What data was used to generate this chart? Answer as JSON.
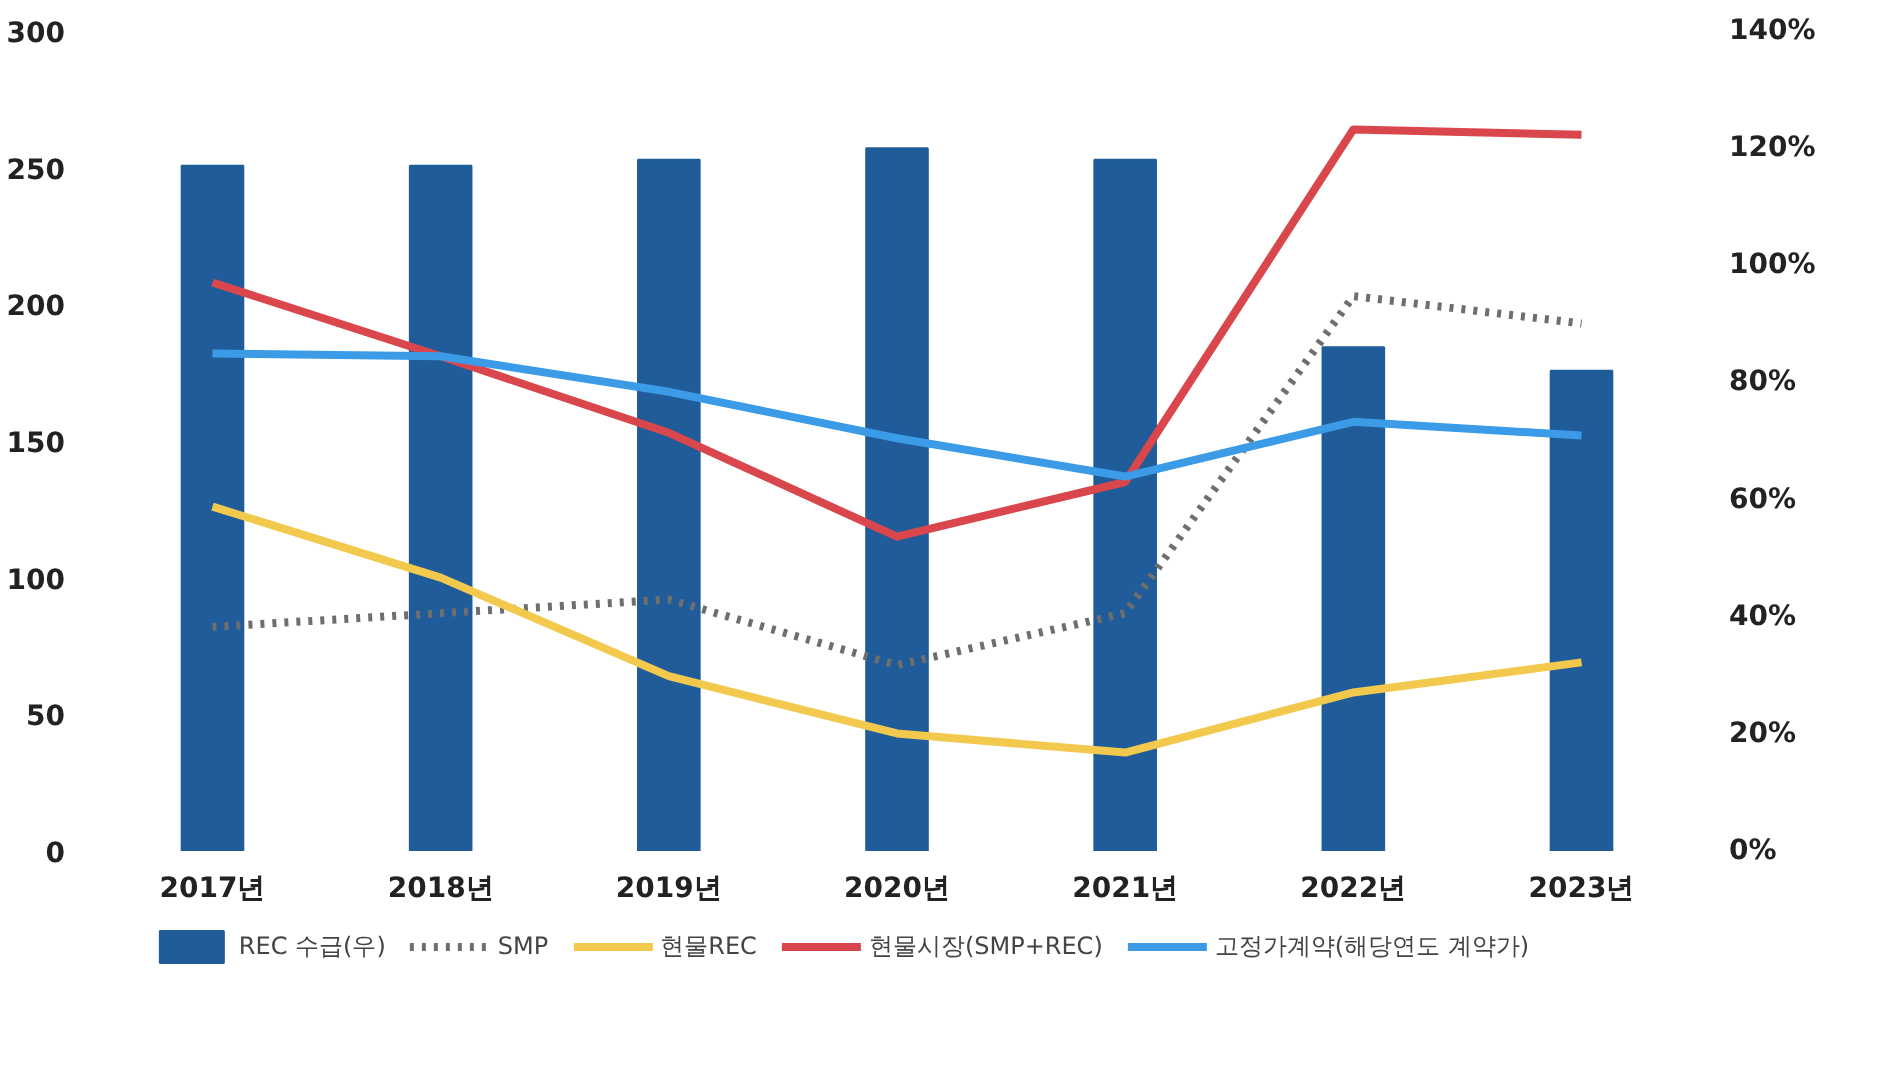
{
  "chart_data": {
    "type": "line",
    "categories": [
      "2017년",
      "2018년",
      "2019년",
      "2020년",
      "2021년",
      "2022년",
      "2023년"
    ],
    "series": [
      {
        "name": "REC 수급(우)",
        "type": "bar",
        "axis": "y2",
        "color": "#1f5c99",
        "values": [
          117,
          117,
          118,
          120,
          118,
          86,
          82
        ]
      },
      {
        "name": "SMP",
        "type": "line",
        "line_style": "dotted",
        "color": "#6e6e6e",
        "values": [
          82,
          87,
          92,
          68,
          87,
          203,
          193
        ]
      },
      {
        "name": "현물REC",
        "type": "line",
        "line_style": "solid",
        "color": "#f2c94c",
        "values": [
          126,
          100,
          64,
          43,
          36,
          58,
          69
        ]
      },
      {
        "name": "현물시장(SMP+REC)",
        "type": "line",
        "line_style": "solid",
        "color": "#d9464b",
        "values": [
          208,
          181,
          153,
          115,
          135,
          264,
          262
        ]
      },
      {
        "name": "고정가계약(해당연도 계약가)",
        "type": "line",
        "line_style": "solid",
        "color": "#3b9be6",
        "values": [
          182,
          181,
          168,
          151,
          137,
          157,
          152
        ]
      }
    ],
    "ylim": [
      0,
      300
    ],
    "yticks": [
      0,
      50,
      100,
      150,
      200,
      250,
      300
    ],
    "y2lim": [
      0,
      140
    ],
    "y2ticks": [
      {
        "value": 0,
        "label": "0%"
      },
      {
        "value": 20,
        "label": "20%"
      },
      {
        "value": 40,
        "label": "40%"
      },
      {
        "value": 60,
        "label": "60%"
      },
      {
        "value": 80,
        "label": "80%"
      },
      {
        "value": 100,
        "label": "100%"
      },
      {
        "value": 120,
        "label": "120%"
      },
      {
        "value": 140,
        "label": "140%"
      }
    ],
    "grid": false,
    "legend": "bottom",
    "marker": "none"
  }
}
